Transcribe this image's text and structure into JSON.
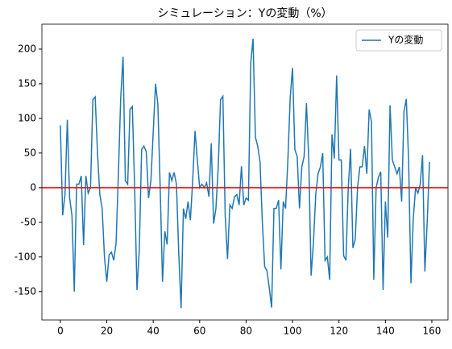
{
  "chart_data": {
    "type": "line",
    "title": "シミュレーション：Yの変動（%）",
    "x": [
      0,
      1,
      2,
      3,
      4,
      5,
      6,
      7,
      8,
      9,
      10,
      11,
      12,
      13,
      14,
      15,
      16,
      17,
      18,
      19,
      20,
      21,
      22,
      23,
      24,
      25,
      26,
      27,
      28,
      29,
      30,
      31,
      32,
      33,
      34,
      35,
      36,
      37,
      38,
      39,
      40,
      41,
      42,
      43,
      44,
      45,
      46,
      47,
      48,
      49,
      50,
      51,
      52,
      53,
      54,
      55,
      56,
      57,
      58,
      59,
      60,
      61,
      62,
      63,
      64,
      65,
      66,
      67,
      68,
      69,
      70,
      71,
      72,
      73,
      74,
      75,
      76,
      77,
      78,
      79,
      80,
      81,
      82,
      83,
      84,
      85,
      86,
      87,
      88,
      89,
      90,
      91,
      92,
      93,
      94,
      95,
      96,
      97,
      98,
      99,
      100,
      101,
      102,
      103,
      104,
      105,
      106,
      107,
      108,
      109,
      110,
      111,
      112,
      113,
      114,
      115,
      116,
      117,
      118,
      119,
      120,
      121,
      122,
      123,
      124,
      125,
      126,
      127,
      128,
      129,
      130,
      131,
      132,
      133,
      134,
      135,
      136,
      137,
      138,
      139,
      140,
      141,
      142,
      143,
      144,
      145,
      146,
      147,
      148,
      149,
      150,
      151,
      152,
      153,
      154,
      155,
      156,
      157,
      158,
      159
    ],
    "series": [
      {
        "name": "Yの変動",
        "color": "#1f77b4",
        "values": [
          90,
          -40,
          -10,
          98,
          -15,
          -40,
          -150,
          5,
          5,
          17,
          -83,
          17,
          -8,
          0,
          127,
          131,
          50,
          -10,
          -30,
          -100,
          -136,
          -97,
          -93,
          -105,
          -80,
          20,
          130,
          189,
          10,
          5,
          113,
          117,
          0,
          -148,
          -90,
          55,
          60,
          52,
          -15,
          10,
          80,
          150,
          120,
          0,
          -136,
          -63,
          -82,
          22,
          10,
          22,
          5,
          -95,
          -174,
          -30,
          -45,
          -20,
          -47,
          10,
          82,
          40,
          0,
          5,
          0,
          7,
          -13,
          64,
          -52,
          -30,
          30,
          127,
          132,
          -40,
          -103,
          -25,
          -30,
          -13,
          -10,
          -25,
          31,
          -25,
          -15,
          -18,
          180,
          215,
          73,
          60,
          37,
          -50,
          -114,
          -120,
          -145,
          -173,
          -30,
          -30,
          -18,
          -118,
          -20,
          -30,
          40,
          130,
          173,
          55,
          45,
          -30,
          30,
          45,
          122,
          40,
          -127,
          -80,
          -10,
          20,
          30,
          50,
          -105,
          -100,
          -133,
          77,
          42,
          162,
          40,
          40,
          -98,
          -105,
          0,
          56,
          -87,
          -75,
          0,
          30,
          30,
          60,
          20,
          113,
          95,
          -133,
          0,
          15,
          23,
          -148,
          -20,
          -72,
          119,
          40,
          30,
          20,
          30,
          -20,
          110,
          128,
          40,
          -138,
          -45,
          0,
          -8,
          5,
          47,
          -121,
          -50,
          37
        ]
      }
    ],
    "hline": {
      "value": 0,
      "color": "#ff0000"
    },
    "xlim": [
      -7.95,
      166.95
    ],
    "xticks": [
      0,
      20,
      40,
      60,
      80,
      100,
      120,
      140,
      160
    ],
    "ylim": [
      -191,
      236
    ],
    "yticks": [
      -150,
      -100,
      -50,
      0,
      50,
      100,
      150,
      200
    ],
    "legend": "upper right"
  }
}
